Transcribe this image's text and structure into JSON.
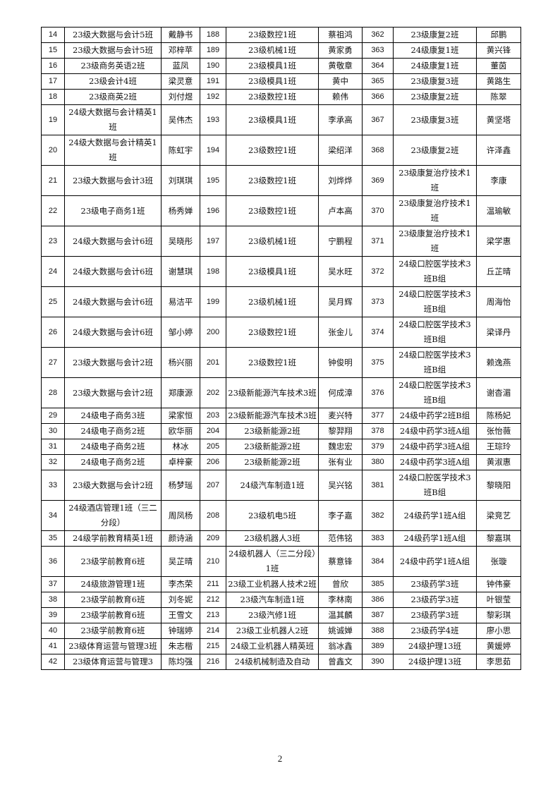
{
  "page_number": "2",
  "rows": [
    [
      [
        "14",
        "23级大数据与会计5班",
        "戴静书"
      ],
      [
        "188",
        "23级数控1班",
        "蔡祖鸿"
      ],
      [
        "362",
        "23级康复2班",
        "邱鹏"
      ]
    ],
    [
      [
        "15",
        "23级大数据与会计5班",
        "邓梓苹"
      ],
      [
        "189",
        "23级机械1班",
        "黄家勇"
      ],
      [
        "363",
        "24级康复1班",
        "黄兴锋"
      ]
    ],
    [
      [
        "16",
        "23级商务英语2班",
        "蓝凤"
      ],
      [
        "190",
        "23级模具1班",
        "黄敬章"
      ],
      [
        "364",
        "24级康复1班",
        "董茵"
      ]
    ],
    [
      [
        "17",
        "23级会计4班",
        "梁灵意"
      ],
      [
        "191",
        "23级模具1班",
        "黄中"
      ],
      [
        "365",
        "23级康复3班",
        "黄路生"
      ]
    ],
    [
      [
        "18",
        "23级商英2班",
        "刘付煜"
      ],
      [
        "192",
        "23级数控1班",
        "赖伟"
      ],
      [
        "366",
        "23级康复2班",
        "陈翠"
      ]
    ],
    [
      [
        "19",
        "24级大数据与会计精英1班",
        "吴伟杰"
      ],
      [
        "193",
        "23级模具1班",
        "李承高"
      ],
      [
        "367",
        "23级康复3班",
        "黄坚塔"
      ]
    ],
    [
      [
        "20",
        "24级大数据与会计精英1班",
        "陈虹宇"
      ],
      [
        "194",
        "23级数控1班",
        "梁绍洋"
      ],
      [
        "368",
        "23级康复2班",
        "许泽鑫"
      ]
    ],
    [
      [
        "21",
        "23级大数据与会计3班",
        "刘琪琪"
      ],
      [
        "195",
        "23级数控1班",
        "刘烨烨"
      ],
      [
        "369",
        "23级康复治疗技术1班",
        "李康"
      ]
    ],
    [
      [
        "22",
        "23级电子商务1班",
        "杨秀婵"
      ],
      [
        "196",
        "23级数控1班",
        "卢本高"
      ],
      [
        "370",
        "23级康复治疗技术1班",
        "温瑜敏"
      ]
    ],
    [
      [
        "23",
        "24级大数据与会计6班",
        "吴晓彤"
      ],
      [
        "197",
        "23级机械1班",
        "宁鹏程"
      ],
      [
        "371",
        "23级康复治疗技术1班",
        "梁学惠"
      ]
    ],
    [
      [
        "24",
        "24级大数据与会计6班",
        "谢慧琪"
      ],
      [
        "198",
        "23级模具1班",
        "吴水旺"
      ],
      [
        "372",
        "24级口腔医学技术3班B组",
        "丘芷晴"
      ]
    ],
    [
      [
        "25",
        "24级大数据与会计6班",
        "易洁平"
      ],
      [
        "199",
        "23级机械1班",
        "吴月辉"
      ],
      [
        "373",
        "24级口腔医学技术3班B组",
        "周海怡"
      ]
    ],
    [
      [
        "26",
        "24级大数据与会计6班",
        "邹小婷"
      ],
      [
        "200",
        "23级数控1班",
        "张金儿"
      ],
      [
        "374",
        "24级口腔医学技术3班B组",
        "梁译丹"
      ]
    ],
    [
      [
        "27",
        "23级大数据与会计2班",
        "杨兴丽"
      ],
      [
        "201",
        "23级数控1班",
        "钟俊明"
      ],
      [
        "375",
        "24级口腔医学技术3班B组",
        "赖逸燕"
      ]
    ],
    [
      [
        "28",
        "23级大数据与会计2班",
        "郑康源"
      ],
      [
        "202",
        "23级新能源汽车技术3班",
        "何成漳"
      ],
      [
        "376",
        "24级口腔医学技术3班B组",
        "谢杳湄"
      ]
    ],
    [
      [
        "29",
        "24级电子商务3班",
        "梁家恒"
      ],
      [
        "203",
        "23级新能源汽车技术3班",
        "麦兴特"
      ],
      [
        "377",
        "24级中药学2班B组",
        "陈杨妃"
      ]
    ],
    [
      [
        "30",
        "24级电子商务2班",
        "欧华丽"
      ],
      [
        "204",
        "23级新能源2班",
        "黎羿翔"
      ],
      [
        "378",
        "24级中药学3班A组",
        "张怡薇"
      ]
    ],
    [
      [
        "31",
        "24级电子商务2班",
        "林冰"
      ],
      [
        "205",
        "23级新能源2班",
        "魏忠宏"
      ],
      [
        "379",
        "24级中药学3班A组",
        "王琮玲"
      ]
    ],
    [
      [
        "32",
        "24级电子商务2班",
        "卓梓豪"
      ],
      [
        "206",
        "23级新能源2班",
        "张有业"
      ],
      [
        "380",
        "24级中药学3班A组",
        "黄淑惠"
      ]
    ],
    [
      [
        "33",
        "23级大数据与会计2班",
        "杨梦瑶"
      ],
      [
        "207",
        "24级汽车制造1班",
        "吴兴铭"
      ],
      [
        "381",
        "24级口腔医学技术3班B组",
        "黎晓阳"
      ]
    ],
    [
      [
        "34",
        "24级酒店管理1班（三二分段）",
        "周凤杨"
      ],
      [
        "208",
        "23级机电5班",
        "李子嘉"
      ],
      [
        "382",
        "24级药学1班A组",
        "梁竞艺"
      ]
    ],
    [
      [
        "35",
        "24级学前教育精英1班",
        "颜诗涵"
      ],
      [
        "209",
        "23级机器人3班",
        "范伟铭"
      ],
      [
        "383",
        "24级药学1班A组",
        "黎嘉琪"
      ]
    ],
    [
      [
        "36",
        "23级学前教育6班",
        "吴芷晴"
      ],
      [
        "210",
        "24级机器人（三二分段）1班",
        "蔡意锋"
      ],
      [
        "384",
        "24级中药学1班A组",
        "张璇"
      ]
    ],
    [
      [
        "37",
        "24级旅游管理1班",
        "李杰荣"
      ],
      [
        "211",
        "23级工业机器人技术2班",
        "曾欣"
      ],
      [
        "385",
        "23级药学3班",
        "钟伟豪"
      ]
    ],
    [
      [
        "38",
        "23级学前教育6班",
        "刘冬妮"
      ],
      [
        "212",
        "23级汽车制造1班",
        "李林南"
      ],
      [
        "386",
        "23级药学3班",
        "叶银莹"
      ]
    ],
    [
      [
        "39",
        "23级学前教育6班",
        "王雪文"
      ],
      [
        "213",
        "23级汽修1班",
        "温其麟"
      ],
      [
        "387",
        "23级药学3班",
        "黎彩琪"
      ]
    ],
    [
      [
        "40",
        "23级学前教育6班",
        "钟瑞婷"
      ],
      [
        "214",
        "23级工业机器人2班",
        "姚诚婵"
      ],
      [
        "388",
        "23级药学4班",
        "廖小思"
      ]
    ],
    [
      [
        "41",
        "23级体育运营与管理3班",
        "朱志楷"
      ],
      [
        "215",
        "24级工业机器人精英班",
        "翁冰鑫"
      ],
      [
        "389",
        "24级护理13班",
        "黄媛婷"
      ]
    ],
    [
      [
        "42",
        "23级体育运营与管理3",
        "陈均强"
      ],
      [
        "216",
        "24级机械制造及自动",
        "曾鑫文"
      ],
      [
        "390",
        "24级护理13班",
        "李思茹"
      ]
    ]
  ]
}
